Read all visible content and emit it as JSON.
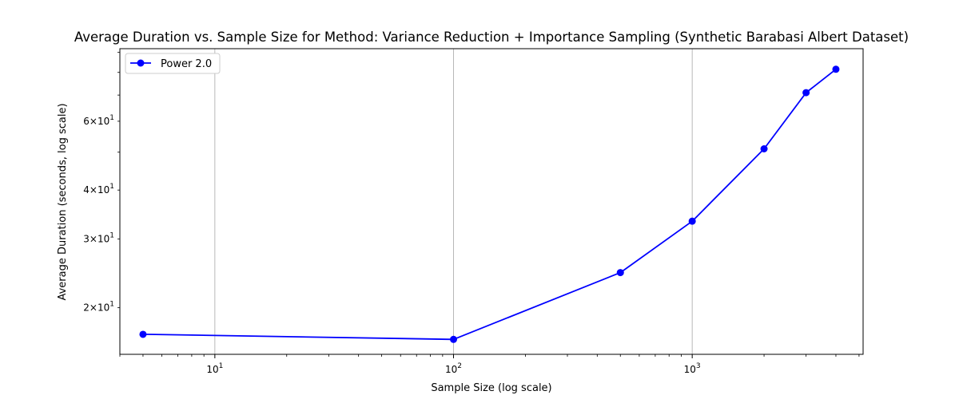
{
  "chart_data": {
    "type": "line",
    "title": "Average Duration vs. Sample Size for Method: Variance Reduction + Importance Sampling (Synthetic Barabasi Albert Dataset)",
    "xlabel": "Sample Size (log scale)",
    "ylabel": "Average Duration (seconds, log scale)",
    "xscale": "log",
    "yscale": "log",
    "xlim": [
      4,
      5200
    ],
    "ylim": [
      15.2,
      92
    ],
    "x_major_ticks": [
      {
        "value": 10,
        "base": "10",
        "exp": "1"
      },
      {
        "value": 100,
        "base": "10",
        "exp": "2"
      },
      {
        "value": 1000,
        "base": "10",
        "exp": "3"
      }
    ],
    "y_labeled_ticks": [
      {
        "value": 20,
        "mant": "2",
        "base": "10",
        "exp": "1"
      },
      {
        "value": 30,
        "mant": "3",
        "base": "10",
        "exp": "1"
      },
      {
        "value": 40,
        "mant": "4",
        "base": "10",
        "exp": "1"
      },
      {
        "value": 60,
        "mant": "6",
        "base": "10",
        "exp": "1"
      }
    ],
    "y_minor_ticks": [
      50,
      70,
      80,
      90
    ],
    "grid": "vertical major lines",
    "legend_position": "top-left",
    "color": "#0000ff",
    "series": [
      {
        "name": "Power 2.0",
        "x": [
          5,
          100,
          500,
          1000,
          2000,
          3000,
          4000
        ],
        "y": [
          17.1,
          16.6,
          24.6,
          33.3,
          51.0,
          71.0,
          81.5
        ]
      }
    ]
  }
}
